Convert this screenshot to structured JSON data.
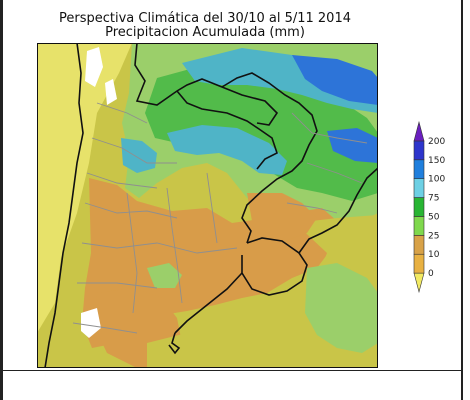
{
  "title": "Perspectiva Climática del 30/10 al 5/11 2014",
  "subtitle": "Precipitacion Acumulada (mm)",
  "legend": {
    "levels": [
      "0",
      "10",
      "25",
      "50",
      "75",
      "100",
      "150",
      "200"
    ],
    "colors": [
      "#f2ea62",
      "#e8b142",
      "#d8a248",
      "#7fd84d",
      "#28b533",
      "#6dd0e4",
      "#1f7fdd",
      "#2d35cc",
      "#6a1fbf"
    ]
  },
  "map_colors": {
    "yellow": "#c9c548",
    "light_yellow": "#e7e26a",
    "orange": "#d89c49",
    "green_light": "#9bcf6a",
    "green": "#52bb4a",
    "cyan": "#4fb4c7",
    "blue": "#2d74d8",
    "white": "#ffffff",
    "border": "#111111",
    "state_line": "#8f8f8f"
  }
}
